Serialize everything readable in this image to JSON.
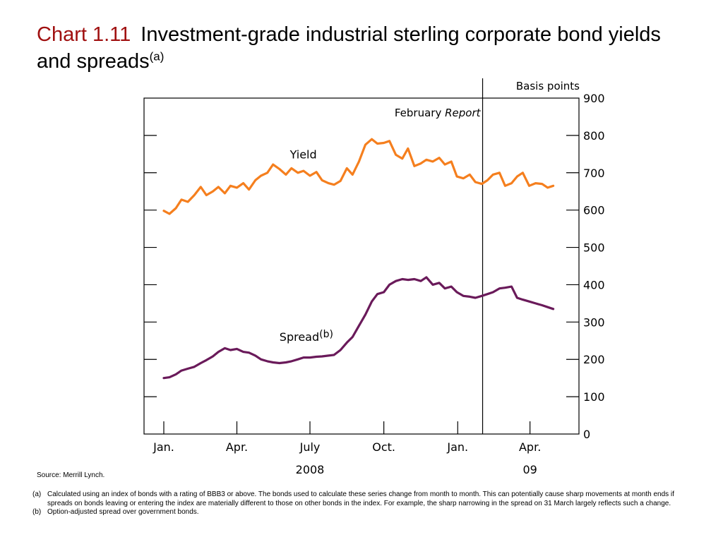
{
  "title": {
    "label": "Chart 1.11",
    "text": "Investment-grade industrial sterling corporate bond yields and spreads",
    "superscript": "(a)"
  },
  "source": "Source:  Merrill Lynch.",
  "footnotes": [
    {
      "tag": "(a)",
      "text": "Calculated using an index of bonds with a rating of BBB3 or above.  The bonds used to calculate these series change from month to month.  This can potentially cause sharp movements at month ends if spreads on bonds leaving or entering the index are materially different to those on other bonds in the index.  For example, the sharp narrowing in the spread on 31 March largely reflects such a change."
    },
    {
      "tag": "(b)",
      "text": "Option-adjusted spread over government bonds."
    }
  ],
  "chart_data": {
    "type": "line",
    "ylabel": "Basis points",
    "ylim": [
      0,
      900
    ],
    "yticks": [
      0,
      100,
      200,
      300,
      400,
      500,
      600,
      700,
      800,
      900
    ],
    "xlim": [
      "2008-01-01",
      "2009-05-10"
    ],
    "xticks": [
      {
        "date": "2008-01-01",
        "label": "Jan."
      },
      {
        "date": "2008-04-01",
        "label": "Apr."
      },
      {
        "date": "2008-07-01",
        "label": "July"
      },
      {
        "date": "2008-10-01",
        "label": "Oct."
      },
      {
        "date": "2009-01-01",
        "label": "Jan."
      },
      {
        "date": "2009-04-01",
        "label": "Apr."
      }
    ],
    "year_labels": [
      {
        "date": "2008-07-01",
        "label": "2008"
      },
      {
        "date": "2009-04-01",
        "label": "09"
      }
    ],
    "grid": false,
    "annotations": [
      {
        "type": "vline",
        "date": "2009-02-01",
        "text": "February",
        "text_italic": "Report"
      }
    ],
    "series": [
      {
        "name": "Yield",
        "label_superscript": "",
        "color": "#f57f1e",
        "x": [
          "2008-01-01",
          "2008-01-08",
          "2008-01-16",
          "2008-01-23",
          "2008-01-31",
          "2008-02-08",
          "2008-02-16",
          "2008-02-23",
          "2008-03-02",
          "2008-03-09",
          "2008-03-17",
          "2008-03-24",
          "2008-04-01",
          "2008-04-09",
          "2008-04-16",
          "2008-04-24",
          "2008-05-01",
          "2008-05-09",
          "2008-05-16",
          "2008-05-24",
          "2008-06-01",
          "2008-06-08",
          "2008-06-16",
          "2008-06-23",
          "2008-07-01",
          "2008-07-09",
          "2008-07-16",
          "2008-07-24",
          "2008-07-31",
          "2008-08-08",
          "2008-08-16",
          "2008-08-23",
          "2008-08-31",
          "2008-09-08",
          "2008-09-16",
          "2008-09-23",
          "2008-10-01",
          "2008-10-08",
          "2008-10-16",
          "2008-10-24",
          "2008-10-31",
          "2008-11-08",
          "2008-11-16",
          "2008-11-23",
          "2008-12-01",
          "2008-12-09",
          "2008-12-16",
          "2008-12-24",
          "2008-12-31",
          "2009-01-08",
          "2009-01-16",
          "2009-01-23",
          "2009-01-31",
          "2009-02-07",
          "2009-02-14",
          "2009-02-22",
          "2009-03-01",
          "2009-03-09",
          "2009-03-16",
          "2009-03-23",
          "2009-03-31",
          "2009-04-08",
          "2009-04-16",
          "2009-04-23",
          "2009-04-30"
        ],
        "values": [
          598,
          590,
          605,
          628,
          622,
          640,
          662,
          640,
          650,
          662,
          645,
          665,
          660,
          672,
          655,
          680,
          692,
          700,
          722,
          710,
          695,
          712,
          700,
          705,
          692,
          702,
          680,
          672,
          668,
          678,
          712,
          695,
          730,
          775,
          790,
          778,
          780,
          785,
          748,
          738,
          765,
          718,
          725,
          735,
          730,
          740,
          722,
          730,
          690,
          685,
          695,
          675,
          670,
          680,
          695,
          700,
          665,
          672,
          690,
          700,
          665,
          672,
          670,
          660,
          665
        ]
      },
      {
        "name": "Spread",
        "label_superscript": "(b)",
        "color": "#6a1a5a",
        "x": [
          "2008-01-01",
          "2008-01-08",
          "2008-01-16",
          "2008-01-23",
          "2008-01-31",
          "2008-02-08",
          "2008-02-16",
          "2008-02-23",
          "2008-03-02",
          "2008-03-09",
          "2008-03-17",
          "2008-03-24",
          "2008-04-01",
          "2008-04-09",
          "2008-04-16",
          "2008-04-24",
          "2008-05-01",
          "2008-05-09",
          "2008-05-16",
          "2008-05-24",
          "2008-06-01",
          "2008-06-08",
          "2008-06-16",
          "2008-06-23",
          "2008-07-01",
          "2008-07-09",
          "2008-07-16",
          "2008-07-24",
          "2008-07-31",
          "2008-08-08",
          "2008-08-16",
          "2008-08-23",
          "2008-08-31",
          "2008-09-08",
          "2008-09-16",
          "2008-09-23",
          "2008-10-01",
          "2008-10-08",
          "2008-10-16",
          "2008-10-24",
          "2008-10-31",
          "2008-11-08",
          "2008-11-16",
          "2008-11-23",
          "2008-12-01",
          "2008-12-09",
          "2008-12-16",
          "2008-12-24",
          "2008-12-31",
          "2009-01-08",
          "2009-01-16",
          "2009-01-23",
          "2009-01-31",
          "2009-02-07",
          "2009-02-14",
          "2009-02-22",
          "2009-03-01",
          "2009-03-09",
          "2009-03-16",
          "2009-03-23",
          "2009-03-31",
          "2009-04-08",
          "2009-04-16",
          "2009-04-23",
          "2009-04-30"
        ],
        "values": [
          150,
          152,
          160,
          170,
          175,
          180,
          190,
          198,
          208,
          220,
          230,
          225,
          228,
          220,
          218,
          210,
          200,
          195,
          192,
          190,
          192,
          195,
          200,
          205,
          205,
          207,
          208,
          210,
          212,
          225,
          245,
          260,
          290,
          320,
          355,
          375,
          380,
          400,
          410,
          415,
          413,
          415,
          410,
          420,
          400,
          405,
          390,
          395,
          380,
          370,
          368,
          365,
          370,
          375,
          380,
          390,
          392,
          395,
          365,
          360,
          355,
          350,
          345,
          340,
          335
        ]
      }
    ]
  }
}
